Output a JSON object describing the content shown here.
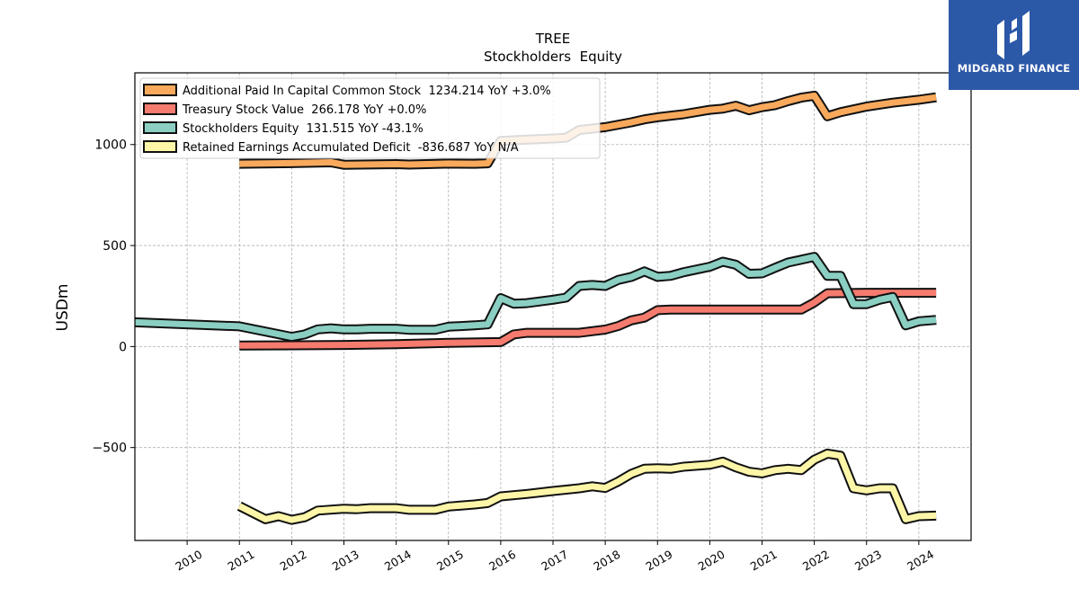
{
  "brand": {
    "name": "MIDGARD FINANCE",
    "logo_icon": "midgard-h-logo-icon",
    "bg_color": "#2c58a8"
  },
  "chart_data": {
    "type": "line",
    "title": "TREE",
    "subtitle": "Stockholders  Equity",
    "ylabel": "USDm",
    "xlabel": "",
    "xlim": [
      2009.0,
      2025.0
    ],
    "ylim": [
      -960,
      1355
    ],
    "xticks": [
      "2010",
      "2011",
      "2012",
      "2013",
      "2014",
      "2015",
      "2016",
      "2017",
      "2018",
      "2019",
      "2020",
      "2021",
      "2022",
      "2023",
      "2024"
    ],
    "yticks": [
      {
        "value": -500,
        "label": "−500"
      },
      {
        "value": 0,
        "label": "0"
      },
      {
        "value": 500,
        "label": "500"
      },
      {
        "value": 1000,
        "label": "1000"
      }
    ],
    "grid": true,
    "legend_position": "top-left",
    "series": [
      {
        "name": "Additional Paid In Capital Common Stock",
        "legend": "Additional Paid In Capital Common Stock  1234.214 YoY +3.0%",
        "color": "#f9a95c",
        "points": [
          [
            2011.0,
            905
          ],
          [
            2012.0,
            908
          ],
          [
            2012.75,
            912
          ],
          [
            2013.0,
            900
          ],
          [
            2014.0,
            903
          ],
          [
            2014.25,
            901
          ],
          [
            2015.0,
            906
          ],
          [
            2015.5,
            905
          ],
          [
            2015.75,
            907
          ],
          [
            2016.0,
            1018
          ],
          [
            2016.5,
            1024
          ],
          [
            2017.0,
            1030
          ],
          [
            2017.25,
            1033
          ],
          [
            2017.5,
            1072
          ],
          [
            2018.0,
            1086
          ],
          [
            2018.5,
            1110
          ],
          [
            2018.75,
            1125
          ],
          [
            2019.0,
            1135
          ],
          [
            2019.5,
            1150
          ],
          [
            2020.0,
            1172
          ],
          [
            2020.25,
            1178
          ],
          [
            2020.5,
            1192
          ],
          [
            2020.75,
            1170
          ],
          [
            2021.0,
            1185
          ],
          [
            2021.25,
            1195
          ],
          [
            2021.5,
            1215
          ],
          [
            2021.75,
            1232
          ],
          [
            2022.0,
            1242
          ],
          [
            2022.25,
            1140
          ],
          [
            2022.5,
            1160
          ],
          [
            2023.0,
            1188
          ],
          [
            2023.5,
            1207
          ],
          [
            2024.0,
            1222
          ],
          [
            2024.33,
            1234
          ]
        ]
      },
      {
        "name": "Treasury Stock Value",
        "legend": "Treasury Stock Value  266.178 YoY +0.0%",
        "color": "#f47b6e",
        "points": [
          [
            2011.0,
            5
          ],
          [
            2012.0,
            6
          ],
          [
            2013.0,
            8
          ],
          [
            2014.0,
            12
          ],
          [
            2015.0,
            18
          ],
          [
            2016.0,
            22
          ],
          [
            2016.25,
            60
          ],
          [
            2016.5,
            68
          ],
          [
            2017.0,
            68
          ],
          [
            2017.5,
            68
          ],
          [
            2018.0,
            84
          ],
          [
            2018.25,
            102
          ],
          [
            2018.5,
            130
          ],
          [
            2018.75,
            143
          ],
          [
            2019.0,
            180
          ],
          [
            2019.25,
            183
          ],
          [
            2020.0,
            183
          ],
          [
            2021.0,
            183
          ],
          [
            2021.75,
            183
          ],
          [
            2022.0,
            218
          ],
          [
            2022.25,
            264
          ],
          [
            2023.0,
            266
          ],
          [
            2024.0,
            266
          ],
          [
            2024.33,
            266
          ]
        ]
      },
      {
        "name": "Stockholders Equity",
        "legend": "Stockholders Equity  131.515 YoY -43.1%",
        "color": "#8acfc2",
        "points": [
          [
            2009.0,
            120
          ],
          [
            2011.0,
            100
          ],
          [
            2012.0,
            48
          ],
          [
            2012.25,
            60
          ],
          [
            2012.5,
            85
          ],
          [
            2012.75,
            90
          ],
          [
            2013.0,
            85
          ],
          [
            2013.25,
            85
          ],
          [
            2013.5,
            88
          ],
          [
            2014.0,
            88
          ],
          [
            2014.25,
            83
          ],
          [
            2014.75,
            83
          ],
          [
            2015.0,
            98
          ],
          [
            2015.5,
            105
          ],
          [
            2015.75,
            110
          ],
          [
            2016.0,
            240
          ],
          [
            2016.25,
            212
          ],
          [
            2016.5,
            215
          ],
          [
            2017.0,
            232
          ],
          [
            2017.25,
            242
          ],
          [
            2017.5,
            300
          ],
          [
            2017.75,
            305
          ],
          [
            2018.0,
            300
          ],
          [
            2018.25,
            330
          ],
          [
            2018.5,
            345
          ],
          [
            2018.75,
            372
          ],
          [
            2019.0,
            345
          ],
          [
            2019.25,
            350
          ],
          [
            2019.5,
            368
          ],
          [
            2020.0,
            395
          ],
          [
            2020.25,
            420
          ],
          [
            2020.5,
            405
          ],
          [
            2020.75,
            360
          ],
          [
            2021.0,
            362
          ],
          [
            2021.25,
            390
          ],
          [
            2021.5,
            416
          ],
          [
            2021.75,
            430
          ],
          [
            2022.0,
            444
          ],
          [
            2022.25,
            350
          ],
          [
            2022.5,
            350
          ],
          [
            2022.75,
            210
          ],
          [
            2023.0,
            210
          ],
          [
            2023.25,
            232
          ],
          [
            2023.5,
            245
          ],
          [
            2023.75,
            105
          ],
          [
            2024.0,
            125
          ],
          [
            2024.33,
            132
          ]
        ]
      },
      {
        "name": "Retained Earnings Accumulated Deficit",
        "legend": "Retained Earnings Accumulated Deficit  -836.687 YoY N/A",
        "color": "#fdf6a8",
        "points": [
          [
            2011.0,
            -790
          ],
          [
            2011.5,
            -855
          ],
          [
            2011.75,
            -840
          ],
          [
            2012.0,
            -858
          ],
          [
            2012.25,
            -845
          ],
          [
            2012.5,
            -812
          ],
          [
            2013.0,
            -803
          ],
          [
            2013.25,
            -805
          ],
          [
            2013.5,
            -800
          ],
          [
            2014.0,
            -800
          ],
          [
            2014.25,
            -808
          ],
          [
            2014.75,
            -808
          ],
          [
            2015.0,
            -792
          ],
          [
            2015.5,
            -782
          ],
          [
            2015.75,
            -775
          ],
          [
            2016.0,
            -742
          ],
          [
            2016.5,
            -730
          ],
          [
            2017.0,
            -715
          ],
          [
            2017.5,
            -702
          ],
          [
            2017.75,
            -692
          ],
          [
            2018.0,
            -700
          ],
          [
            2018.25,
            -668
          ],
          [
            2018.5,
            -630
          ],
          [
            2018.75,
            -605
          ],
          [
            2019.0,
            -603
          ],
          [
            2019.25,
            -605
          ],
          [
            2019.5,
            -595
          ],
          [
            2020.0,
            -585
          ],
          [
            2020.25,
            -570
          ],
          [
            2020.5,
            -598
          ],
          [
            2020.75,
            -620
          ],
          [
            2021.0,
            -628
          ],
          [
            2021.25,
            -612
          ],
          [
            2021.5,
            -605
          ],
          [
            2021.75,
            -612
          ],
          [
            2022.0,
            -560
          ],
          [
            2022.25,
            -530
          ],
          [
            2022.5,
            -540
          ],
          [
            2022.75,
            -702
          ],
          [
            2023.0,
            -712
          ],
          [
            2023.25,
            -702
          ],
          [
            2023.5,
            -702
          ],
          [
            2023.75,
            -855
          ],
          [
            2024.0,
            -840
          ],
          [
            2024.33,
            -837
          ]
        ]
      }
    ]
  }
}
